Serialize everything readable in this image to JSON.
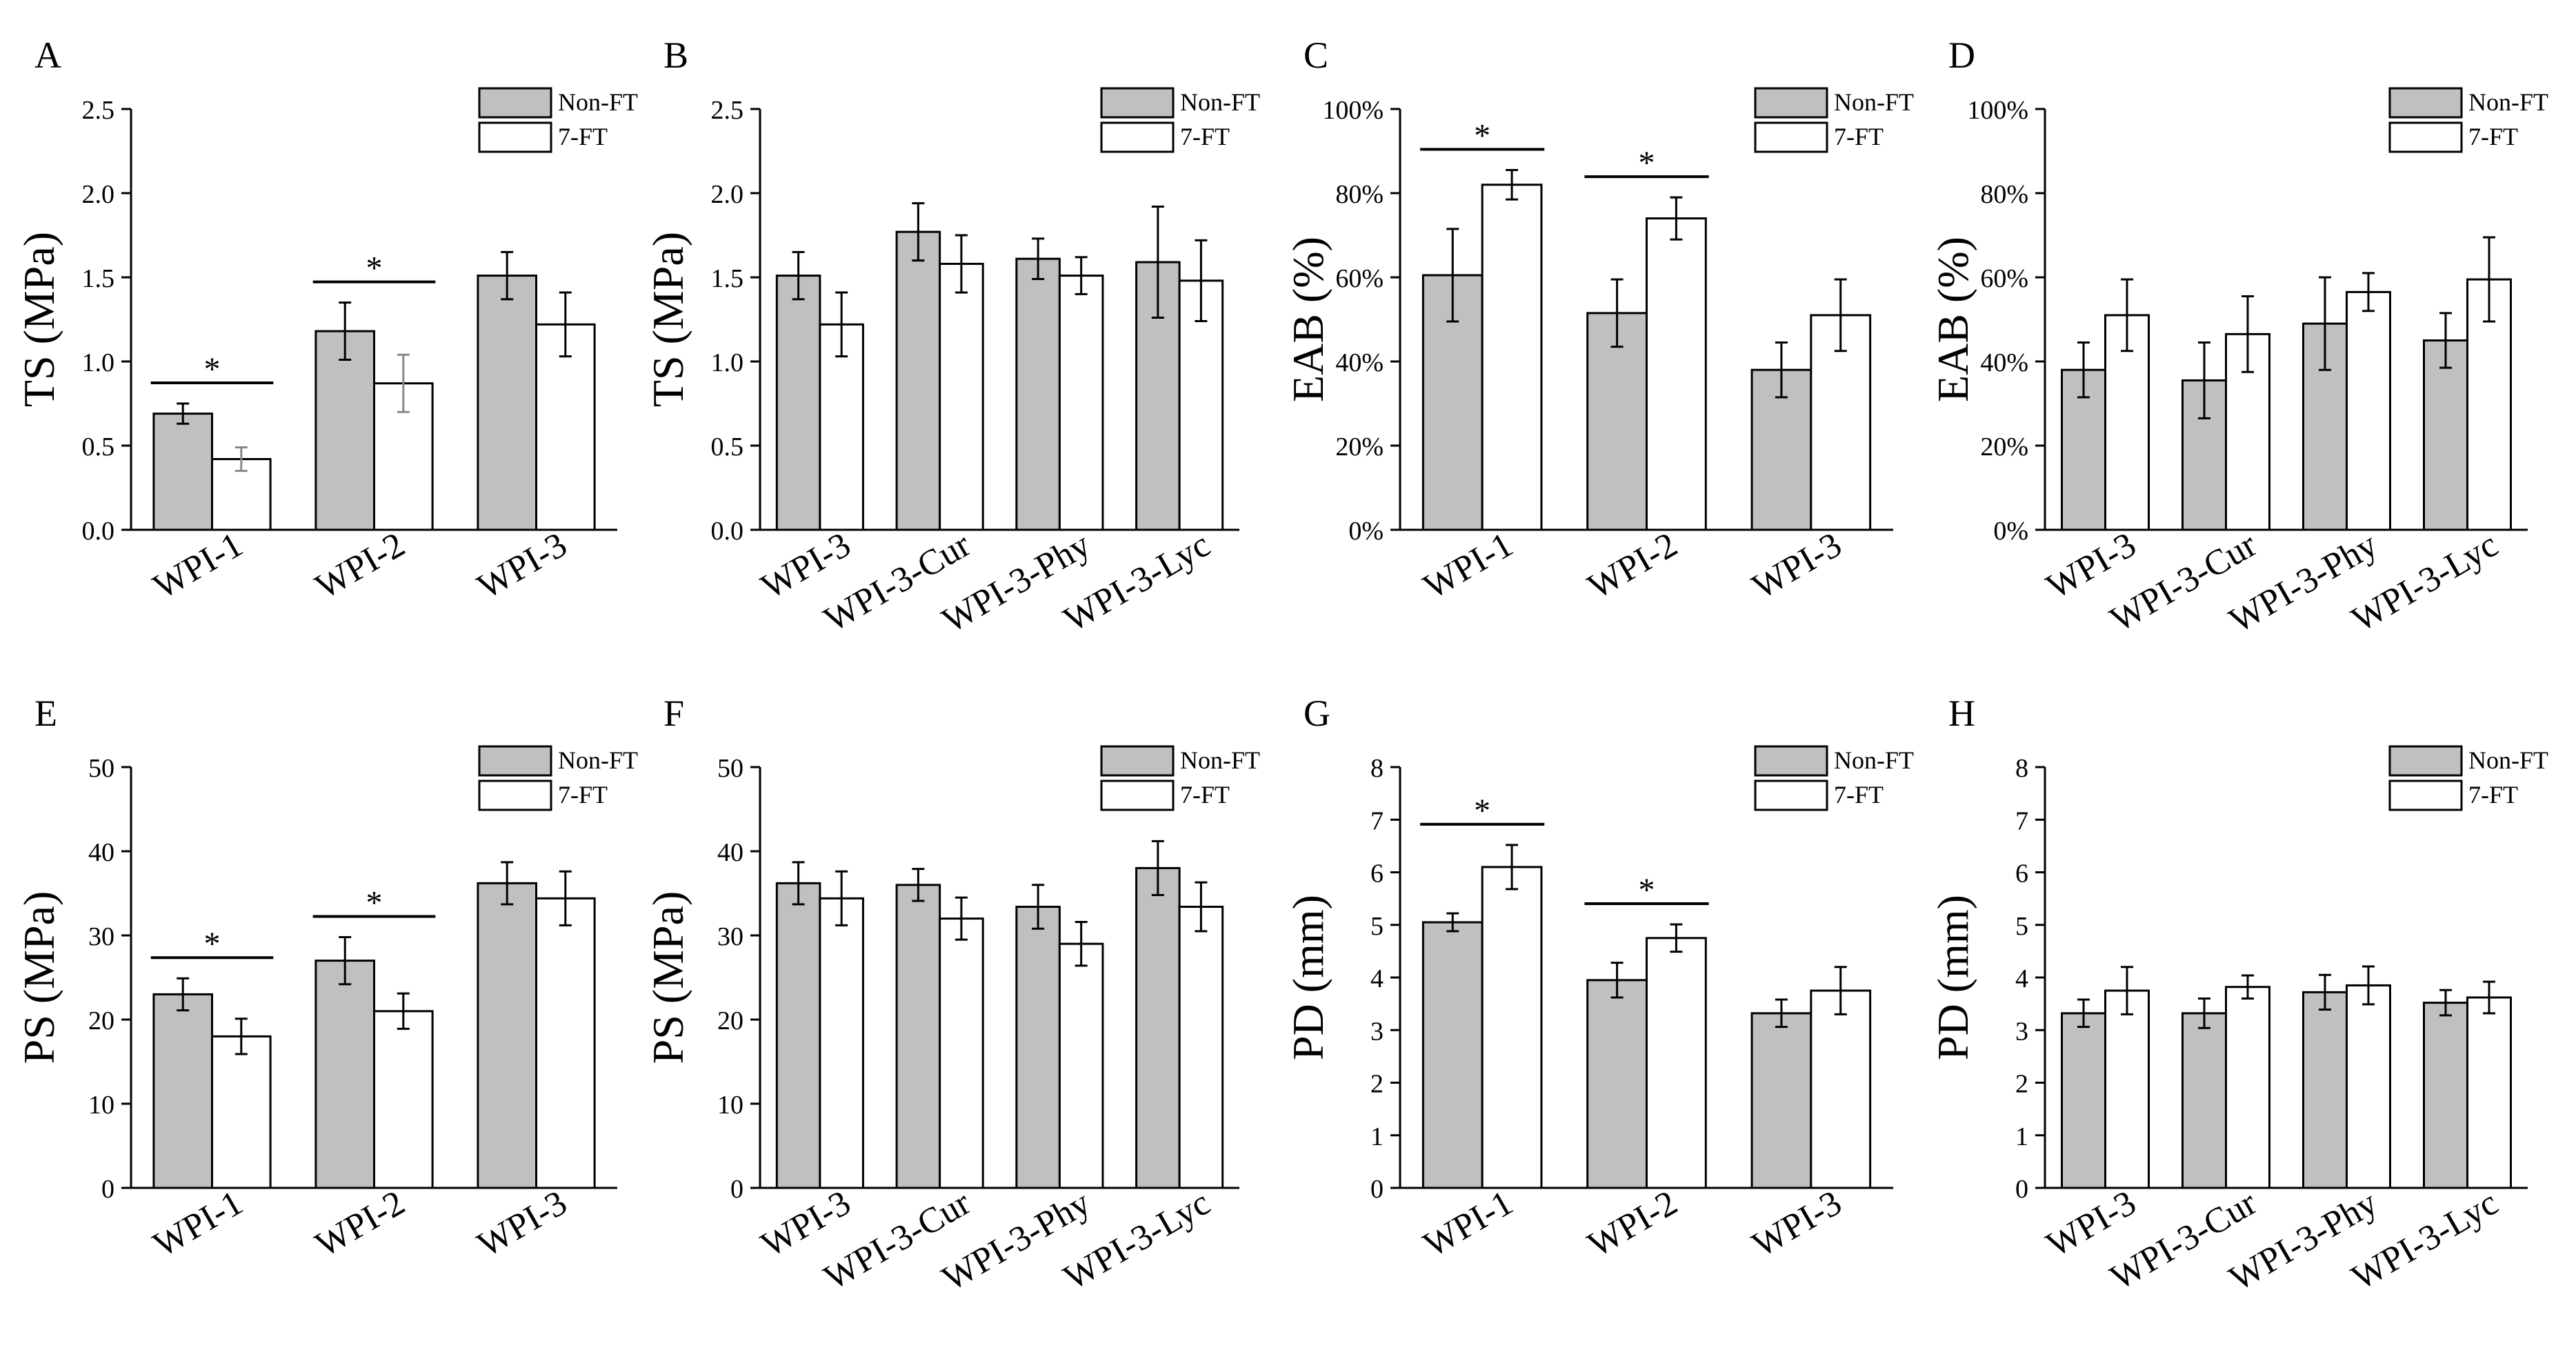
{
  "chart_data": [
    {
      "panel": "A",
      "type": "bar",
      "ylabel": "TS (MPa)",
      "ylim": [
        0,
        2.5
      ],
      "yticks": [
        "0.0",
        "0.5",
        "1.0",
        "1.5",
        "2.0",
        "2.5"
      ],
      "categories": [
        "WPI-1",
        "WPI-2",
        "WPI-3"
      ],
      "series": [
        {
          "name": "Non-FT",
          "values": [
            0.69,
            1.18,
            1.51
          ],
          "errors": [
            0.06,
            0.17,
            0.14
          ]
        },
        {
          "name": "7-FT",
          "values": [
            0.42,
            0.87,
            1.22
          ],
          "errors": [
            0.07,
            0.17,
            0.19
          ]
        }
      ],
      "significance": [
        {
          "category": "WPI-1",
          "label": "*"
        },
        {
          "category": "WPI-2",
          "label": "*"
        }
      ],
      "legend": "top-right"
    },
    {
      "panel": "B",
      "type": "bar",
      "ylabel": "TS (MPa)",
      "ylim": [
        0,
        2.5
      ],
      "yticks": [
        "0.0",
        "0.5",
        "1.0",
        "1.5",
        "2.0",
        "2.5"
      ],
      "categories": [
        "WPI-3",
        "WPI-3-Cur",
        "WPI-3-Phy",
        "WPI-3-Lyc"
      ],
      "series": [
        {
          "name": "Non-FT",
          "values": [
            1.51,
            1.77,
            1.61,
            1.59
          ],
          "errors": [
            0.14,
            0.17,
            0.12,
            0.33
          ]
        },
        {
          "name": "7-FT",
          "values": [
            1.22,
            1.58,
            1.51,
            1.48
          ],
          "errors": [
            0.19,
            0.17,
            0.11,
            0.24
          ]
        }
      ],
      "significance": [],
      "legend": "top-right"
    },
    {
      "panel": "C",
      "type": "bar",
      "ylabel": "EAB (%)",
      "ylim": [
        0,
        100
      ],
      "yticks": [
        "0%",
        "20%",
        "40%",
        "60%",
        "80%",
        "100%"
      ],
      "categories": [
        "WPI-1",
        "WPI-2",
        "WPI-3"
      ],
      "series": [
        {
          "name": "Non-FT",
          "values": [
            60.5,
            51.5,
            38
          ],
          "errors": [
            11,
            8,
            6.5
          ]
        },
        {
          "name": "7-FT",
          "values": [
            82,
            74,
            51
          ],
          "errors": [
            3.5,
            5,
            8.5
          ]
        }
      ],
      "significance": [
        {
          "category": "WPI-1",
          "label": "*"
        },
        {
          "category": "WPI-2",
          "label": "*"
        }
      ],
      "legend": "top-right"
    },
    {
      "panel": "D",
      "type": "bar",
      "ylabel": "EAB (%)",
      "ylim": [
        0,
        100
      ],
      "yticks": [
        "0%",
        "20%",
        "40%",
        "60%",
        "80%",
        "100%"
      ],
      "categories": [
        "WPI-3",
        "WPI-3-Cur",
        "WPI-3-Phy",
        "WPI-3-Lyc"
      ],
      "series": [
        {
          "name": "Non-FT",
          "values": [
            38,
            35.5,
            49,
            45
          ],
          "errors": [
            6.5,
            9,
            11,
            6.5
          ]
        },
        {
          "name": "7-FT",
          "values": [
            51,
            46.5,
            56.5,
            59.5
          ],
          "errors": [
            8.5,
            9,
            4.5,
            10
          ]
        }
      ],
      "significance": [],
      "legend": "top-right"
    },
    {
      "panel": "E",
      "type": "bar",
      "ylabel": "PS (MPa)",
      "ylim": [
        0,
        50
      ],
      "yticks": [
        "0",
        "10",
        "20",
        "30",
        "40",
        "50"
      ],
      "categories": [
        "WPI-1",
        "WPI-2",
        "WPI-3"
      ],
      "series": [
        {
          "name": "Non-FT",
          "values": [
            23,
            27,
            36.2
          ],
          "errors": [
            1.9,
            2.8,
            2.5
          ]
        },
        {
          "name": "7-FT",
          "values": [
            18,
            21,
            34.4
          ],
          "errors": [
            2.1,
            2.1,
            3.2
          ]
        }
      ],
      "significance": [
        {
          "category": "WPI-1",
          "label": "*"
        },
        {
          "category": "WPI-2",
          "label": "*"
        }
      ],
      "legend": "top-right"
    },
    {
      "panel": "F",
      "type": "bar",
      "ylabel": "PS (MPa)",
      "ylim": [
        0,
        50
      ],
      "yticks": [
        "0",
        "10",
        "20",
        "30",
        "40",
        "50"
      ],
      "categories": [
        "WPI-3",
        "WPI-3-Cur",
        "WPI-3-Phy",
        "WPI-3-Lyc"
      ],
      "series": [
        {
          "name": "Non-FT",
          "values": [
            36.2,
            36,
            33.4,
            38
          ],
          "errors": [
            2.5,
            1.9,
            2.6,
            3.2
          ]
        },
        {
          "name": "7-FT",
          "values": [
            34.4,
            32,
            29,
            33.4
          ],
          "errors": [
            3.2,
            2.5,
            2.6,
            2.9
          ]
        }
      ],
      "significance": [],
      "legend": "top-right"
    },
    {
      "panel": "G",
      "type": "bar",
      "ylabel": "PD (mm)",
      "ylim": [
        0,
        8
      ],
      "yticks": [
        "0",
        "1",
        "2",
        "3",
        "4",
        "5",
        "6",
        "7",
        "8"
      ],
      "categories": [
        "WPI-1",
        "WPI-2",
        "WPI-3"
      ],
      "series": [
        {
          "name": "Non-FT",
          "values": [
            5.05,
            3.95,
            3.32
          ],
          "errors": [
            0.17,
            0.33,
            0.26
          ]
        },
        {
          "name": "7-FT",
          "values": [
            6.1,
            4.75,
            3.75
          ],
          "errors": [
            0.42,
            0.26,
            0.45
          ]
        }
      ],
      "significance": [
        {
          "category": "WPI-1",
          "label": "*"
        },
        {
          "category": "WPI-2",
          "label": "*"
        }
      ],
      "legend": "top-right"
    },
    {
      "panel": "H",
      "type": "bar",
      "ylabel": "PD (mm)",
      "ylim": [
        0,
        8
      ],
      "yticks": [
        "0",
        "1",
        "2",
        "3",
        "4",
        "5",
        "6",
        "7",
        "8"
      ],
      "categories": [
        "WPI-3",
        "WPI-3-Cur",
        "WPI-3-Phy",
        "WPI-3-Lyc"
      ],
      "series": [
        {
          "name": "Non-FT",
          "values": [
            3.32,
            3.32,
            3.72,
            3.52
          ],
          "errors": [
            0.26,
            0.28,
            0.33,
            0.24
          ]
        },
        {
          "name": "7-FT",
          "values": [
            3.75,
            3.82,
            3.85,
            3.62
          ],
          "errors": [
            0.45,
            0.22,
            0.36,
            0.3
          ]
        }
      ],
      "significance": [],
      "legend": "top-right"
    }
  ],
  "colors": {
    "non_ft": "#c0c0c0",
    "seven_ft": "#ffffff",
    "axis": "#000000"
  }
}
